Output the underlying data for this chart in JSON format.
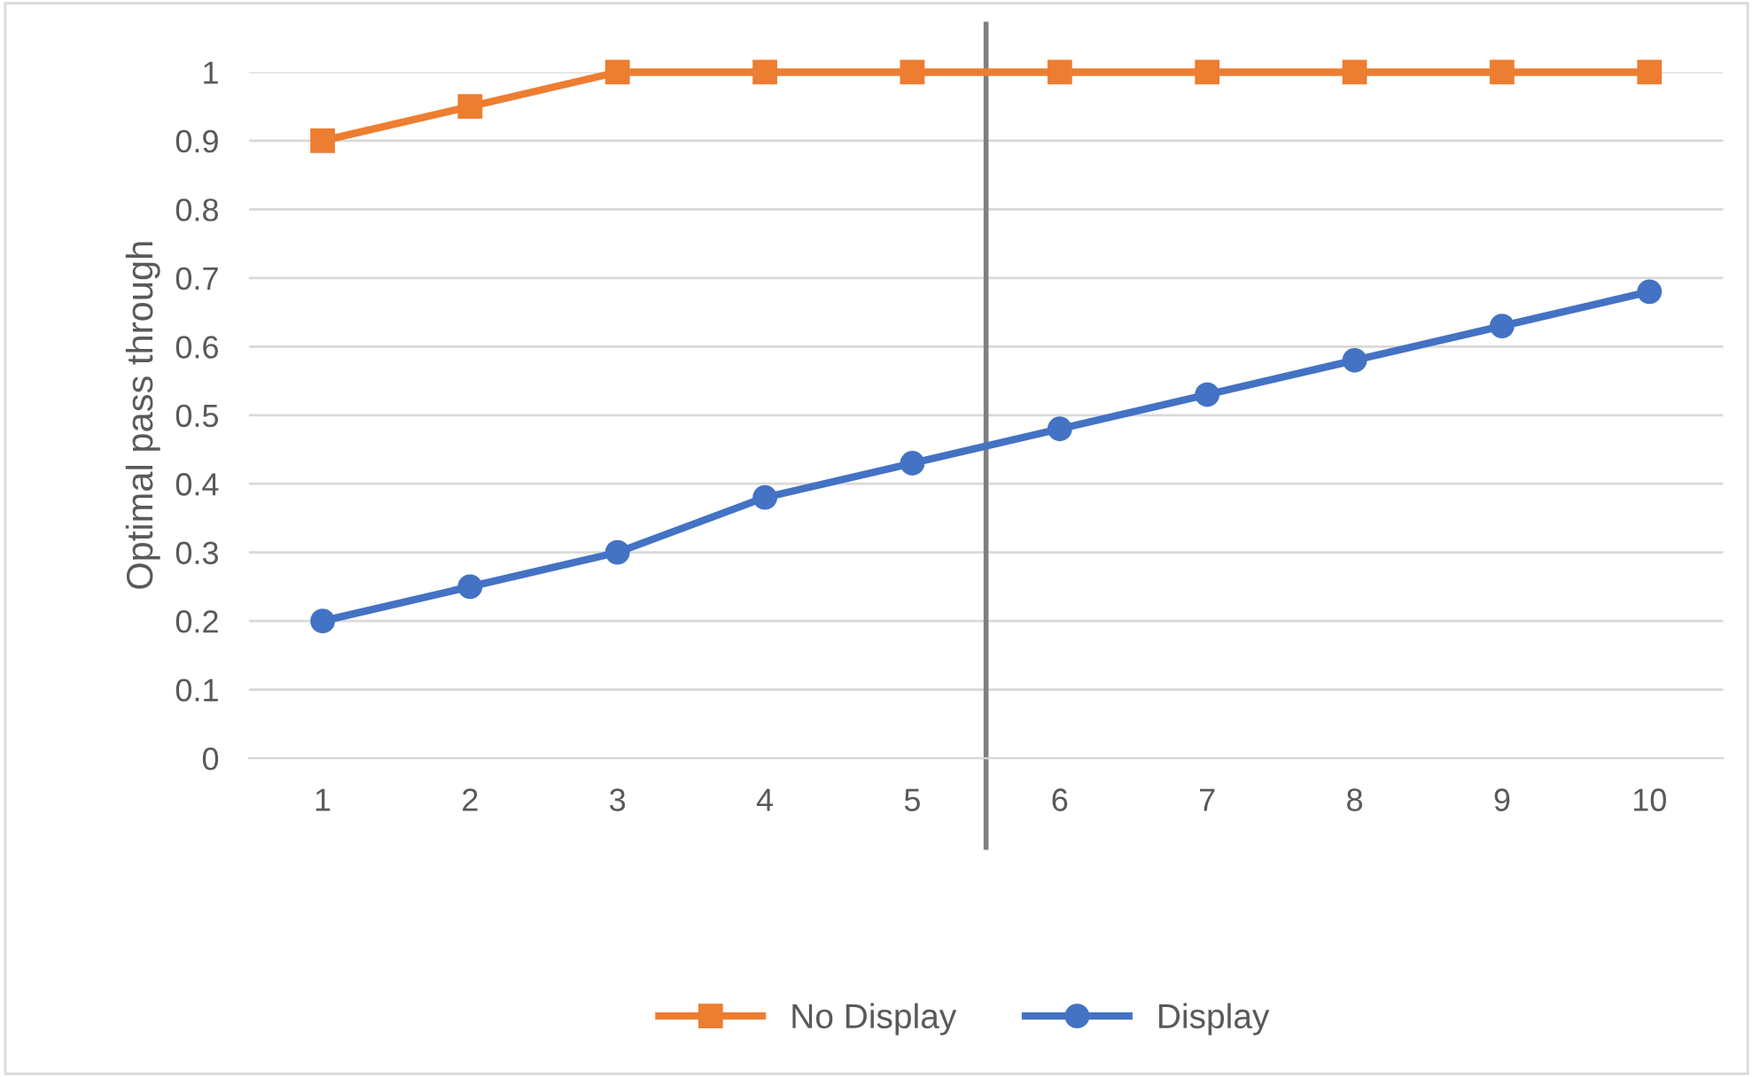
{
  "chart_data": {
    "type": "line",
    "ylabel": "Optimal pass through",
    "x": [
      1,
      2,
      3,
      4,
      5,
      6,
      7,
      8,
      9,
      10
    ],
    "xlim": [
      0.5,
      10.5
    ],
    "xticks": [
      1,
      2,
      3,
      4,
      5,
      6,
      7,
      8,
      9,
      10
    ],
    "ylim": [
      0,
      1
    ],
    "yticks": [
      0,
      0.1,
      0.2,
      0.3,
      0.4,
      0.5,
      0.6,
      0.7,
      0.8,
      0.9,
      1
    ],
    "series": [
      {
        "name": "No Display",
        "color": "#ed7d31",
        "marker": "square",
        "values": [
          0.9,
          0.95,
          1,
          1,
          1,
          1,
          1,
          1,
          1,
          1
        ]
      },
      {
        "name": "Display",
        "color": "#4472c4",
        "marker": "circle",
        "values": [
          0.2,
          0.25,
          0.3,
          0.38,
          0.43,
          0.48,
          0.53,
          0.58,
          0.63,
          0.68
        ]
      }
    ],
    "ref_lines": [
      {
        "axis": "x",
        "value": 5.5,
        "color": "#7f7f7f"
      }
    ],
    "grid": "y",
    "legend": "bottom",
    "line_style": "solid"
  }
}
